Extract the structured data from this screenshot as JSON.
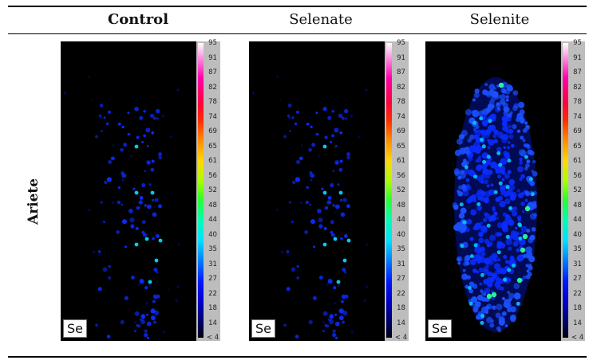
{
  "columns": {
    "control": "Control",
    "selenate": "Selenate",
    "selenite": "Selenite"
  },
  "row_label": "Ariete",
  "element_label": "Se",
  "colorbar_ticks": [
    "95",
    "91",
    "87",
    "82",
    "78",
    "74",
    "69",
    "65",
    "61",
    "56",
    "52",
    "48",
    "44",
    "40",
    "35",
    "31",
    "27",
    "22",
    "18",
    "14",
    "< 4"
  ],
  "colors": {
    "background": "#000000",
    "low": "#0010ff",
    "mid": "#00e0ff",
    "high": "#2cff9a"
  }
}
